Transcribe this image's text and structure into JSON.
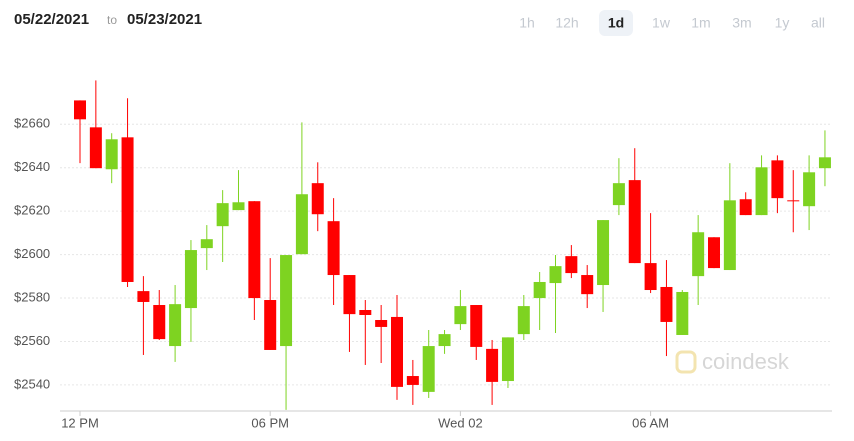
{
  "header": {
    "date_from": "05/22/2021",
    "separator": "to",
    "date_to": "05/23/2021",
    "ranges": [
      "1h",
      "12h",
      "1d",
      "1w",
      "1m",
      "3m",
      "1y",
      "all"
    ],
    "active_range": 2
  },
  "watermark": "coindesk",
  "chart_data": {
    "type": "candlestick",
    "categories": [
      "12 PM",
      null,
      null,
      null,
      null,
      null,
      null,
      null,
      null,
      null,
      null,
      null,
      "06 PM",
      null,
      null,
      null,
      null,
      null,
      null,
      null,
      null,
      null,
      null,
      null,
      "Wed 02",
      null,
      null,
      null,
      null,
      null,
      null,
      null,
      null,
      null,
      null,
      null,
      "06 AM",
      null,
      null,
      null,
      null,
      null,
      null,
      null,
      null,
      null,
      null,
      null
    ],
    "open": [
      2671,
      2658.6,
      2639.3,
      2654,
      2583.2,
      2576.8,
      2557.9,
      2575.4,
      2603,
      2613.1,
      2620.5,
      2624.6,
      2579.1,
      2557.9,
      2600.2,
      2632.9,
      2615.4,
      2590.6,
      2574.5,
      2569.9,
      2571.3,
      2544.1,
      2536.8,
      2557.9,
      2568,
      2576.8,
      2556.6,
      2541.8,
      2563.4,
      2580,
      2586.9,
      2599.3,
      2590.6,
      2586,
      2622.8,
      2634.3,
      2596.1,
      2585.1,
      2563,
      2590.1,
      2608,
      2592.9,
      2625.5,
      2618.2,
      2643.4,
      2625,
      2622.3,
      2639.8
    ],
    "high": [
      2671,
      2680.2,
      2655.9,
      2672,
      2590.1,
      2583.7,
      2586,
      2606.7,
      2613.6,
      2629.7,
      2638.9,
      2624.6,
      2598.4,
      2599.8,
      2660.9,
      2642.5,
      2626,
      2590.6,
      2579.1,
      2576.8,
      2581.4,
      2551.5,
      2565.3,
      2565.3,
      2583.7,
      2576.8,
      2560.7,
      2561.9,
      2581.4,
      2592,
      2599.8,
      2604.4,
      2595.2,
      2615.9,
      2644.4,
      2649,
      2619.1,
      2597.5,
      2583.7,
      2618.2,
      2608,
      2642.1,
      2628.7,
      2645.7,
      2645.7,
      2638.9,
      2645.7,
      2657.2
    ],
    "low": [
      2642.1,
      2639.8,
      2632.9,
      2585.1,
      2553.8,
      2560.7,
      2550.6,
      2559.8,
      2592.9,
      2596.6,
      2620.5,
      2569.9,
      2556.1,
      2528.5,
      2600.2,
      2610.8,
      2576.8,
      2555.2,
      2549.2,
      2550.1,
      2533.1,
      2530.8,
      2534,
      2554.3,
      2565.3,
      2551.5,
      2530.8,
      2538.6,
      2560.7,
      2565.3,
      2563.9,
      2589.2,
      2575.4,
      2573.6,
      2618.2,
      2596.1,
      2582.3,
      2553.3,
      2563,
      2576.8,
      2593.8,
      2592.9,
      2618.2,
      2618.2,
      2619.1,
      2610.3,
      2611.3,
      2631.5
    ],
    "close": [
      2662.3,
      2639.8,
      2653.1,
      2587.4,
      2578.2,
      2561.1,
      2577.2,
      2602.1,
      2607.1,
      2623.7,
      2624.1,
      2580,
      2556.1,
      2599.8,
      2627.8,
      2618.6,
      2590.6,
      2572.6,
      2572.2,
      2566.7,
      2539.1,
      2540,
      2557.9,
      2563.4,
      2576.3,
      2557.5,
      2541.4,
      2561.9,
      2576.3,
      2587.4,
      2594.7,
      2591.5,
      2581.8,
      2615.9,
      2632.9,
      2596.1,
      2583.7,
      2569,
      2582.8,
      2610.3,
      2593.8,
      2625,
      2618.2,
      2640.2,
      2626,
      2624.6,
      2637.9,
      2644.8
    ],
    "up_color": "#7ed321",
    "down_color": "#ff0000",
    "ylim": [
      2528,
      2685
    ],
    "yticks": [
      {
        "value": 2540,
        "label": "$2540"
      },
      {
        "value": 2560,
        "label": "$2560"
      },
      {
        "value": 2580,
        "label": "$2580"
      },
      {
        "value": 2600,
        "label": "$2600"
      },
      {
        "value": 2620,
        "label": "$2620"
      },
      {
        "value": 2640,
        "label": "$2640"
      },
      {
        "value": 2660,
        "label": "$2660"
      }
    ],
    "grid": true
  }
}
